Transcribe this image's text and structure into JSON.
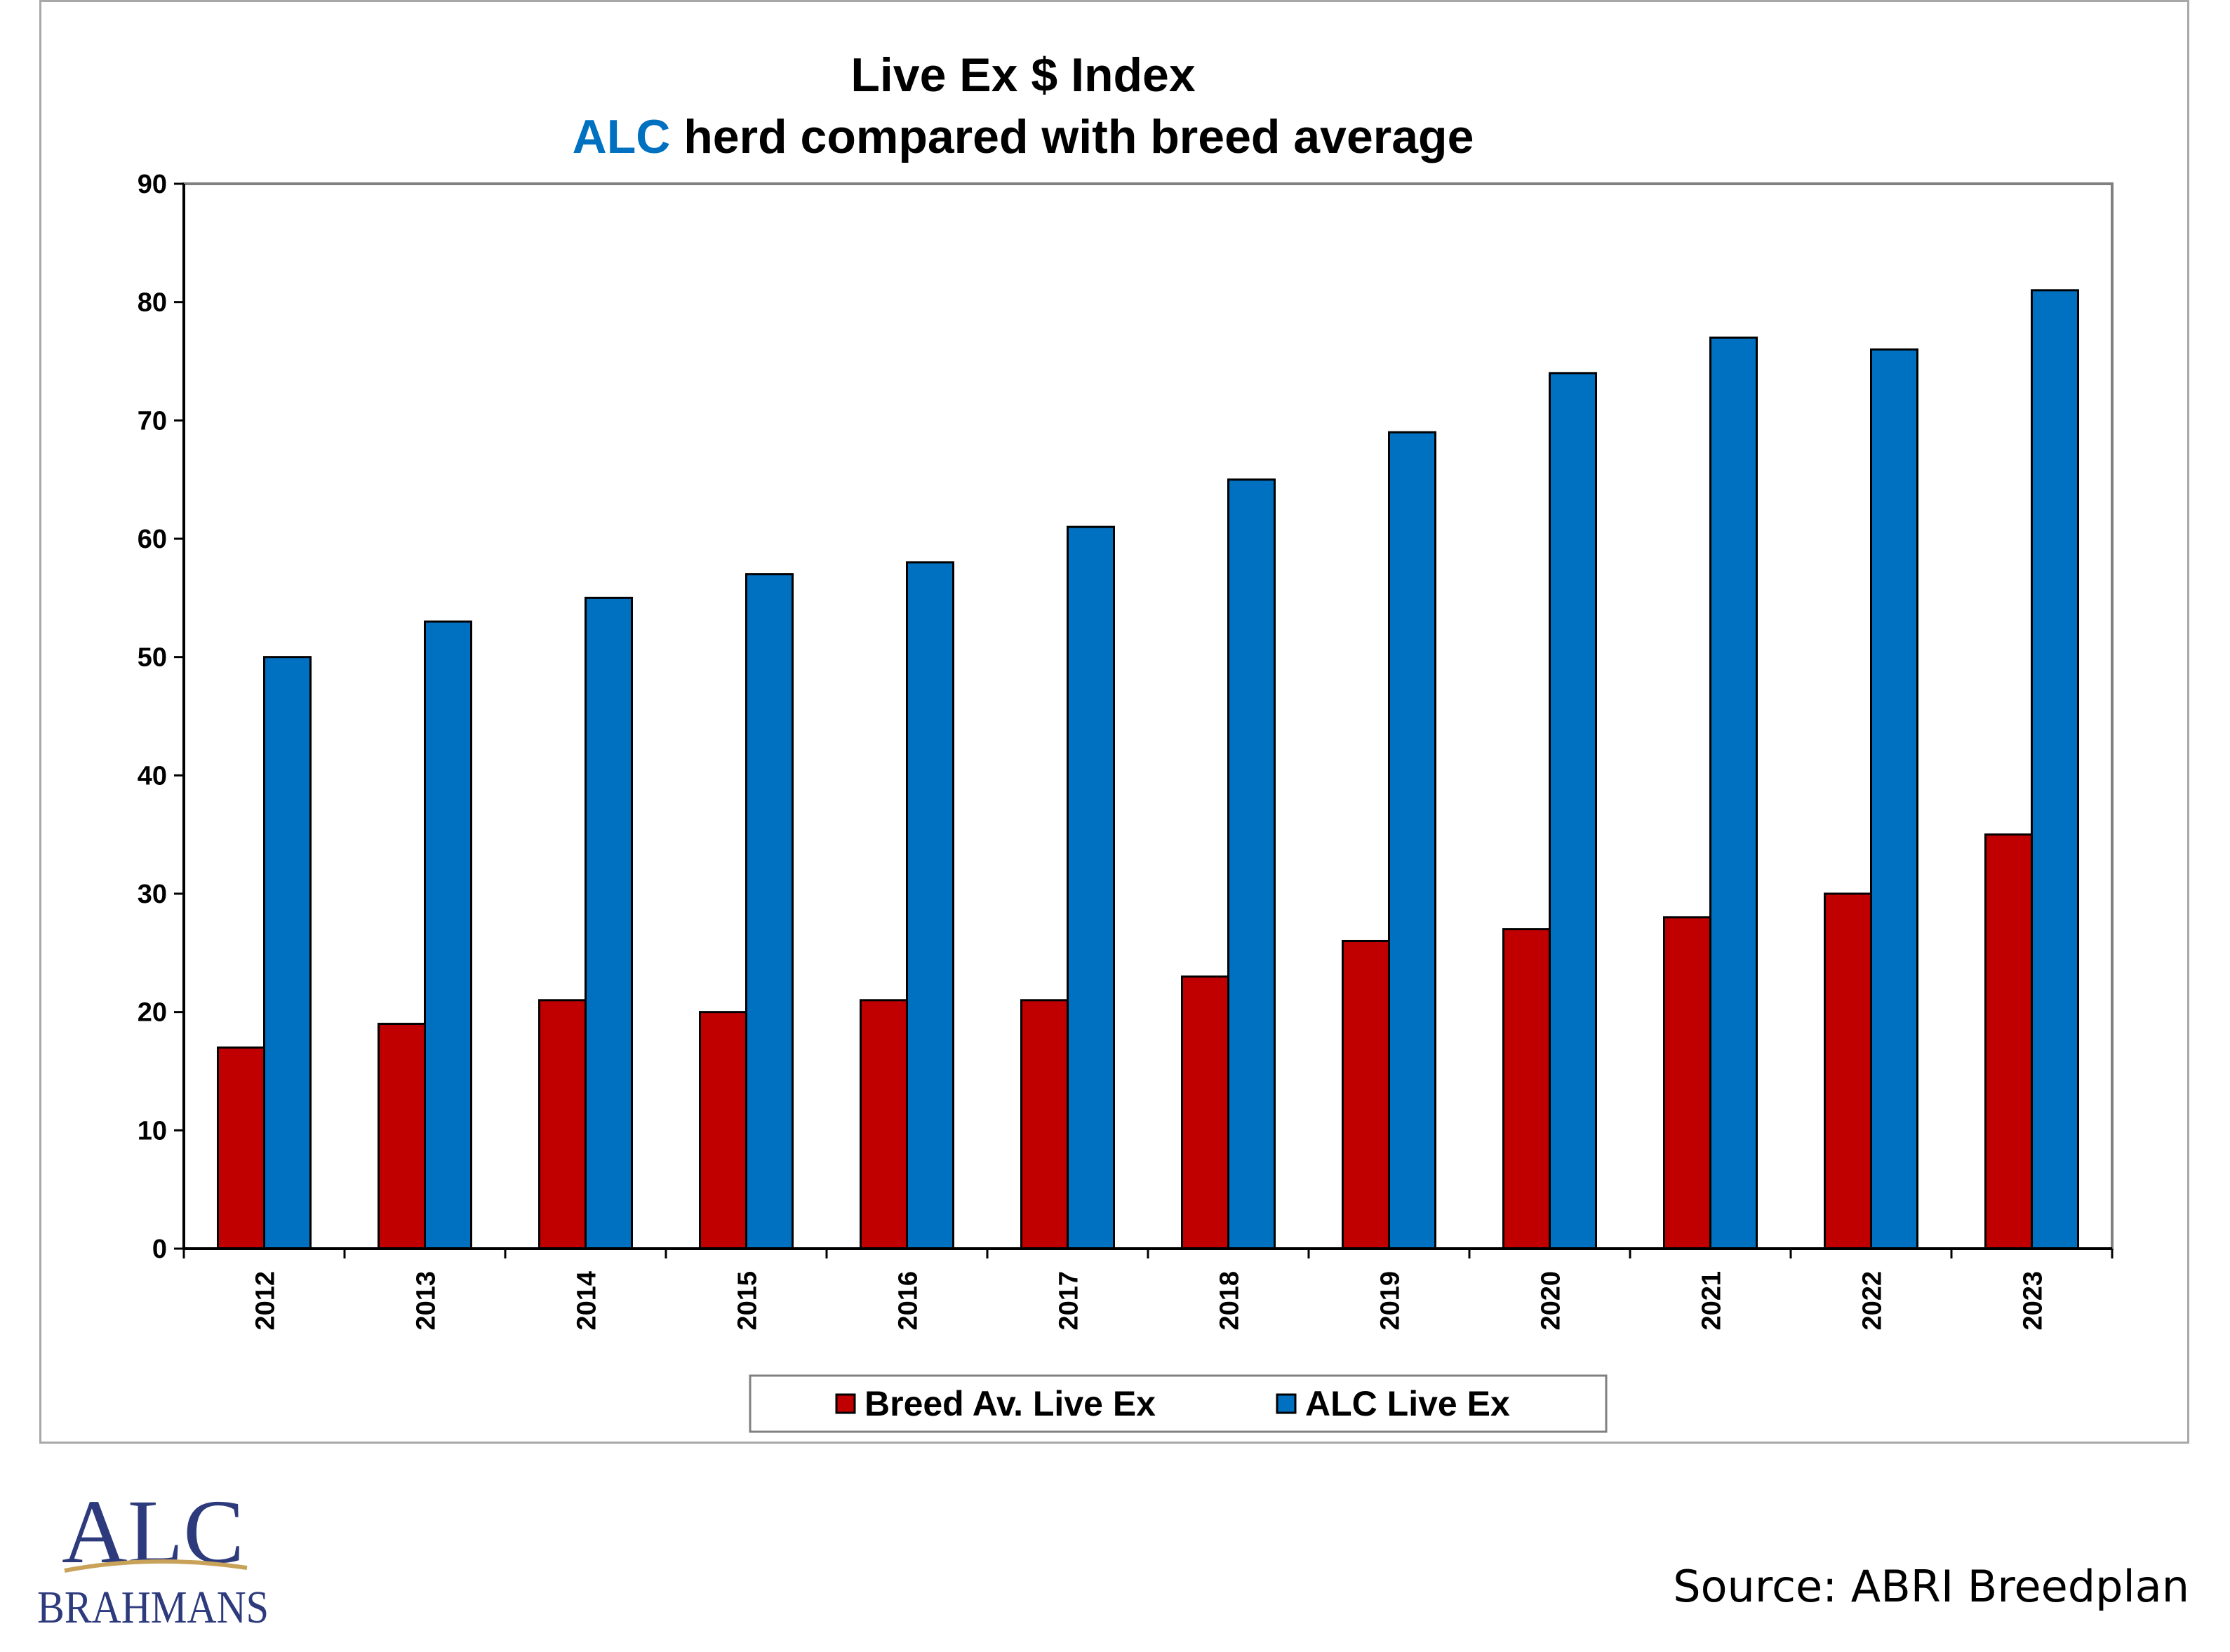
{
  "chart_data": {
    "type": "bar",
    "title_line1": "Live Ex $ Index",
    "title_line2_highlight": "ALC",
    "title_line2_rest": " herd compared with breed average",
    "categories": [
      "2012",
      "2013",
      "2014",
      "2015",
      "2016",
      "2017",
      "2018",
      "2019",
      "2020",
      "2021",
      "2022",
      "2023"
    ],
    "series": [
      {
        "name": "Breed Av. Live Ex",
        "color": "#c00000",
        "values": [
          17,
          19,
          21,
          20,
          21,
          21,
          23,
          26,
          27,
          28,
          30,
          35
        ]
      },
      {
        "name": "ALC Live Ex",
        "color": "#0070c0",
        "values": [
          50,
          53,
          55,
          57,
          58,
          61,
          65,
          69,
          74,
          77,
          76,
          81
        ]
      }
    ],
    "ylim": [
      0,
      90
    ],
    "yticks": [
      0,
      10,
      20,
      30,
      40,
      50,
      60,
      70,
      80,
      90
    ],
    "grid": false,
    "legend_position": "bottom",
    "title_highlight_color": "#0070c0"
  },
  "logo": {
    "line1": "ALC",
    "line2": "BRAHMANS"
  },
  "source": "Source: ABRI Breedplan"
}
